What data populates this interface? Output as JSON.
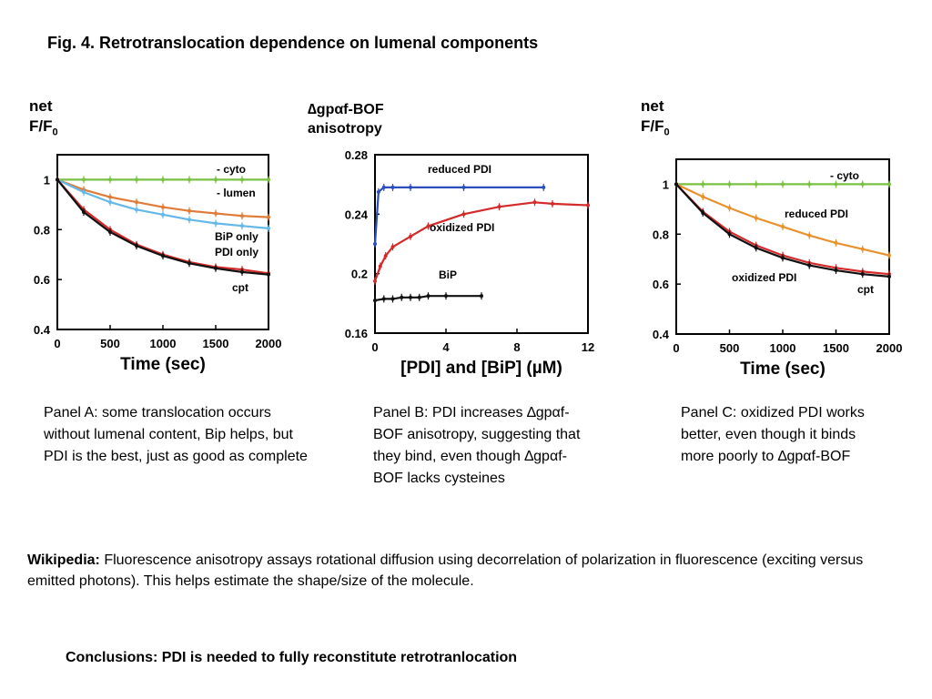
{
  "title": "Fig. 4. Retrotranslocation dependence on lumenal components",
  "panelA": {
    "ylabel_line1": "net",
    "ylabel_line2": "F/F",
    "ylabel_sub": "0",
    "caption": "Panel A: some translocation occurs without lumenal content, Bip helps, but PDI is the best, just as good as complete"
  },
  "panelB": {
    "ylabel_line1": "∆gpαf-BOF",
    "ylabel_line2": "anisotropy",
    "caption": "Panel B: PDI increases ∆gpαf-BOF anisotropy, suggesting that they bind, even though ∆gpαf-BOF lacks cysteines"
  },
  "panelC": {
    "ylabel_line1": "net",
    "ylabel_line2": "F/F",
    "ylabel_sub": "0",
    "caption": "Panel C: oxidized PDI works better, even though it binds more poorly to ∆gpαf-BOF"
  },
  "wikipedia": {
    "label": "Wikipedia:",
    "text": " Fluorescence anisotropy assays rotational diffusion using decorrelation of polarization in fluorescence (exciting versus emitted photons). This helps estimate the shape/size of the molecule."
  },
  "conclusion": "Conclusions: PDI is needed to fully reconstitute retrotranlocation",
  "chart_data": [
    {
      "type": "line",
      "panel": "A",
      "xlabel": "Time (sec)",
      "ylabel": "net F/F0",
      "xlim": [
        0,
        2000
      ],
      "ylim": [
        0.4,
        1.1
      ],
      "xticks": [
        "0",
        "500",
        "1000",
        "1500",
        "2000"
      ],
      "yticks": [
        "0.4",
        "0.6",
        "0.8",
        "1"
      ],
      "series": [
        {
          "name": "- cyto",
          "color": "#7ac143",
          "x": [
            0,
            250,
            500,
            750,
            1000,
            1250,
            1500,
            1750,
            2000
          ],
          "y": [
            1,
            1,
            1,
            1,
            1,
            1,
            1,
            1,
            1
          ]
        },
        {
          "name": "- lumen",
          "color": "#e07b39",
          "x": [
            0,
            250,
            500,
            750,
            1000,
            1250,
            1500,
            1750,
            2000
          ],
          "y": [
            1,
            0.96,
            0.93,
            0.91,
            0.89,
            0.875,
            0.865,
            0.855,
            0.85
          ]
        },
        {
          "name": "BiP only",
          "color": "#66b8e8",
          "x": [
            0,
            250,
            500,
            750,
            1000,
            1250,
            1500,
            1750,
            2000
          ],
          "y": [
            1,
            0.95,
            0.91,
            0.88,
            0.86,
            0.84,
            0.825,
            0.815,
            0.805
          ]
        },
        {
          "name": "PDI only",
          "color": "#d42a2a",
          "x": [
            0,
            250,
            500,
            750,
            1000,
            1250,
            1500,
            1750,
            2000
          ],
          "y": [
            1,
            0.88,
            0.8,
            0.74,
            0.7,
            0.67,
            0.65,
            0.64,
            0.625
          ]
        },
        {
          "name": "cpt",
          "color": "#111111",
          "x": [
            0,
            250,
            500,
            750,
            1000,
            1250,
            1500,
            1750,
            2000
          ],
          "y": [
            1,
            0.87,
            0.79,
            0.735,
            0.695,
            0.665,
            0.645,
            0.63,
            0.62
          ]
        }
      ]
    },
    {
      "type": "line",
      "panel": "B",
      "xlabel": "[PDI]  and  [BiP] (µM)",
      "ylabel": "∆gpαf-BOF anisotropy",
      "xlim": [
        0,
        12
      ],
      "ylim": [
        0.16,
        0.28
      ],
      "xticks": [
        "0",
        "4",
        "8",
        "12"
      ],
      "yticks": [
        "0.16",
        "0.2",
        "0.24",
        "0.28"
      ],
      "series": [
        {
          "name": "reduced PDI",
          "color": "#2a4ebd",
          "x": [
            0,
            0.2,
            0.5,
            1,
            2,
            5,
            9.5
          ],
          "y": [
            0.22,
            0.255,
            0.258,
            0.258,
            0.258,
            0.258,
            0.258
          ]
        },
        {
          "name": "oxidized PDI",
          "color": "#d42a2a",
          "x": [
            0,
            0.3,
            0.6,
            1,
            2,
            3,
            5,
            7,
            9,
            10,
            12
          ],
          "y": [
            0.195,
            0.205,
            0.212,
            0.218,
            0.225,
            0.232,
            0.24,
            0.245,
            0.248,
            0.247,
            0.246
          ]
        },
        {
          "name": "BiP",
          "color": "#111111",
          "x": [
            0,
            0.5,
            1,
            1.5,
            2,
            2.5,
            3,
            4,
            6
          ],
          "y": [
            0.182,
            0.183,
            0.183,
            0.184,
            0.184,
            0.184,
            0.185,
            0.185,
            0.185
          ]
        }
      ]
    },
    {
      "type": "line",
      "panel": "C",
      "xlabel": "Time (sec)",
      "ylabel": "net F/F0",
      "xlim": [
        0,
        2000
      ],
      "ylim": [
        0.4,
        1.1
      ],
      "xticks": [
        "0",
        "500",
        "1000",
        "1500",
        "2000"
      ],
      "yticks": [
        "0.4",
        "0.6",
        "0.8",
        "1"
      ],
      "series": [
        {
          "name": "- cyto",
          "color": "#7ac143",
          "x": [
            0,
            250,
            500,
            750,
            1000,
            1250,
            1500,
            1750,
            2000
          ],
          "y": [
            1,
            1,
            1,
            1,
            1,
            1,
            1,
            1,
            1
          ]
        },
        {
          "name": "reduced PDI",
          "color": "#e8922e",
          "x": [
            0,
            250,
            500,
            750,
            1000,
            1250,
            1500,
            1750,
            2000
          ],
          "y": [
            1,
            0.95,
            0.905,
            0.865,
            0.83,
            0.795,
            0.765,
            0.74,
            0.715
          ]
        },
        {
          "name": "oxidized PDI",
          "color": "#d42a2a",
          "x": [
            0,
            250,
            500,
            750,
            1000,
            1250,
            1500,
            1750,
            2000
          ],
          "y": [
            1,
            0.89,
            0.81,
            0.755,
            0.715,
            0.685,
            0.665,
            0.65,
            0.64
          ]
        },
        {
          "name": "cpt",
          "color": "#111111",
          "x": [
            0,
            250,
            500,
            750,
            1000,
            1250,
            1500,
            1750,
            2000
          ],
          "y": [
            1,
            0.885,
            0.8,
            0.745,
            0.705,
            0.675,
            0.655,
            0.64,
            0.63
          ]
        }
      ]
    }
  ]
}
